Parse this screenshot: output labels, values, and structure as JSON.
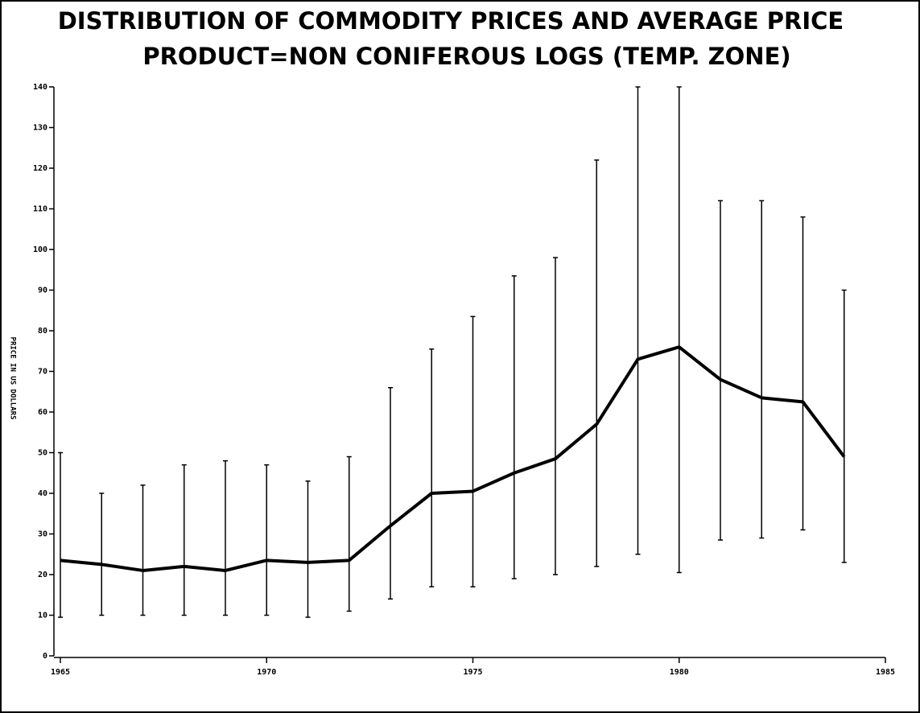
{
  "chart_data": {
    "type": "range-line",
    "title": "DISTRIBUTION OF COMMODITY PRICES AND AVERAGE PRICE",
    "subtitle": "PRODUCT=NON CONIFEROUS LOGS (TEMP. ZONE)",
    "y_label": "PRICE IN US DOLLARS",
    "x": [
      1965,
      1966,
      1967,
      1968,
      1969,
      1970,
      1971,
      1972,
      1973,
      1974,
      1975,
      1976,
      1977,
      1978,
      1979,
      1980,
      1981,
      1982,
      1983,
      1984
    ],
    "low": [
      9.5,
      10,
      10,
      10,
      10,
      10,
      9.5,
      11,
      14,
      17,
      17,
      19,
      20,
      22,
      25,
      20.5,
      28.5,
      29,
      31,
      23
    ],
    "high": [
      50,
      40,
      42,
      47,
      48,
      47,
      43,
      49,
      66,
      75.5,
      83.5,
      93.5,
      98,
      122,
      140,
      140,
      112,
      112,
      108,
      90
    ],
    "average": [
      23.5,
      22.5,
      21,
      22,
      21,
      23.5,
      23,
      23.5,
      32,
      40,
      40.5,
      45,
      48.5,
      57,
      73,
      76,
      68,
      63.5,
      62.5,
      49
    ],
    "color": "#000000",
    "xlim": [
      1965,
      1985
    ],
    "xticks": [
      1965,
      1970,
      1975,
      1980,
      1985
    ],
    "ylim": [
      0,
      140
    ],
    "yticks": [
      0,
      10,
      20,
      30,
      40,
      50,
      60,
      70,
      80,
      90,
      100,
      110,
      120,
      130,
      140
    ]
  }
}
